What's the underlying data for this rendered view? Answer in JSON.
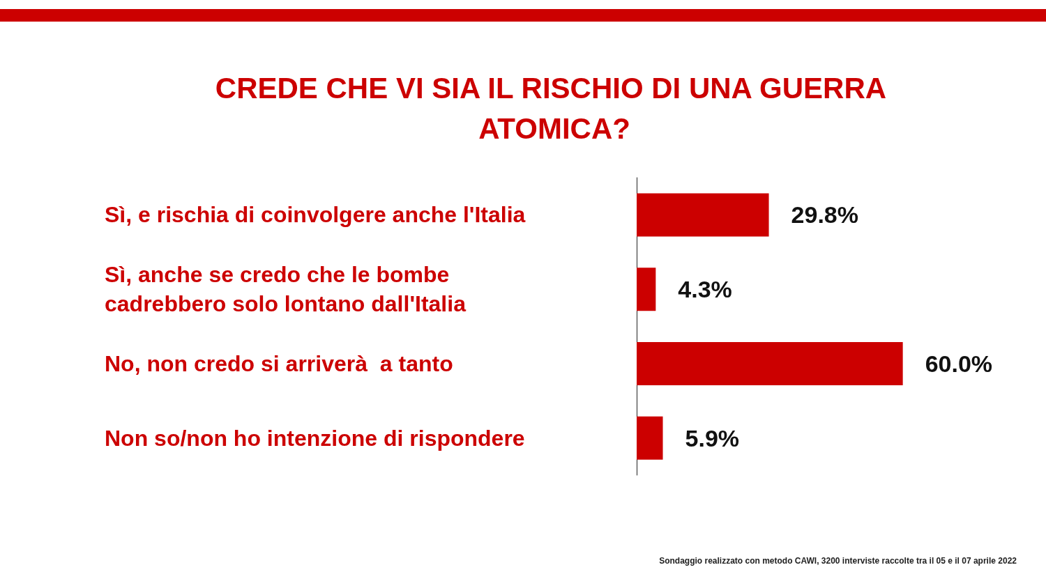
{
  "chart_data": {
    "type": "bar",
    "orientation": "horizontal",
    "title": "CREDE CHE VI SIA IL RISCHIO DI UNA GUERRA ATOMICA?",
    "categories": [
      "Sì, e rischia di coinvolgere anche l'Italia",
      "Sì, anche se credo che le bombe\ncadrebbero solo lontano dall'Italia",
      "No, non credo si arriverà  a tanto",
      "Non so/non ho intenzione di rispondere"
    ],
    "values": [
      29.8,
      4.3,
      60.0,
      5.9
    ],
    "value_labels": [
      "29.8%",
      "4.3%",
      "60.0%",
      "5.9%"
    ],
    "color": "#cc0000",
    "annotations": [
      "Sondaggio realizzato con metodo CAWI, 3200 interviste raccolte tra il 05 e il 07 aprile 2022"
    ]
  }
}
